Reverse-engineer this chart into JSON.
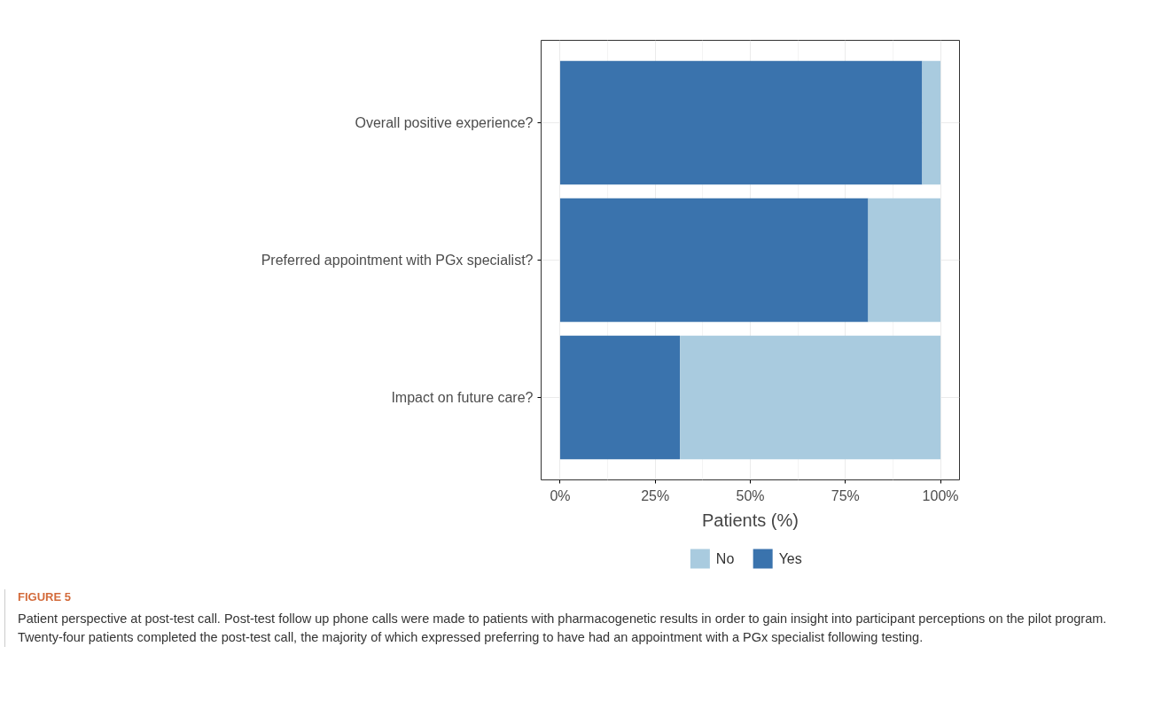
{
  "chart_data": {
    "type": "bar",
    "orientation": "horizontal",
    "stacked": true,
    "categories": [
      "Overall positive experience?",
      "Preferred appointment with PGx specialist?",
      "Impact on future care?"
    ],
    "series": [
      {
        "name": "Yes",
        "color": "#3a73ad",
        "values": [
          95.2,
          81,
          31.5
        ]
      },
      {
        "name": "No",
        "color": "#a9cbdf",
        "values": [
          4.8,
          19,
          68.5
        ]
      }
    ],
    "xlabel": "Patients (%)",
    "xlim": [
      -5,
      105
    ],
    "xticks": [
      {
        "value": 0,
        "label": "0%"
      },
      {
        "value": 25,
        "label": "25%"
      },
      {
        "value": 50,
        "label": "50%"
      },
      {
        "value": 75,
        "label": "75%"
      },
      {
        "value": 100,
        "label": "100%"
      }
    ],
    "grid": true,
    "legend": "bottom",
    "annotations": [
      "FIGURE 5",
      "Patient perspective at post-test call. Post-test follow up phone calls were made to patients with pharmacogenetic results in order to gain insight into participant perceptions on the pilot program. Twenty-four patients completed the post-test call, the majority of which expressed preferring to have had an appointment with a PGx specialist following testing."
    ]
  }
}
